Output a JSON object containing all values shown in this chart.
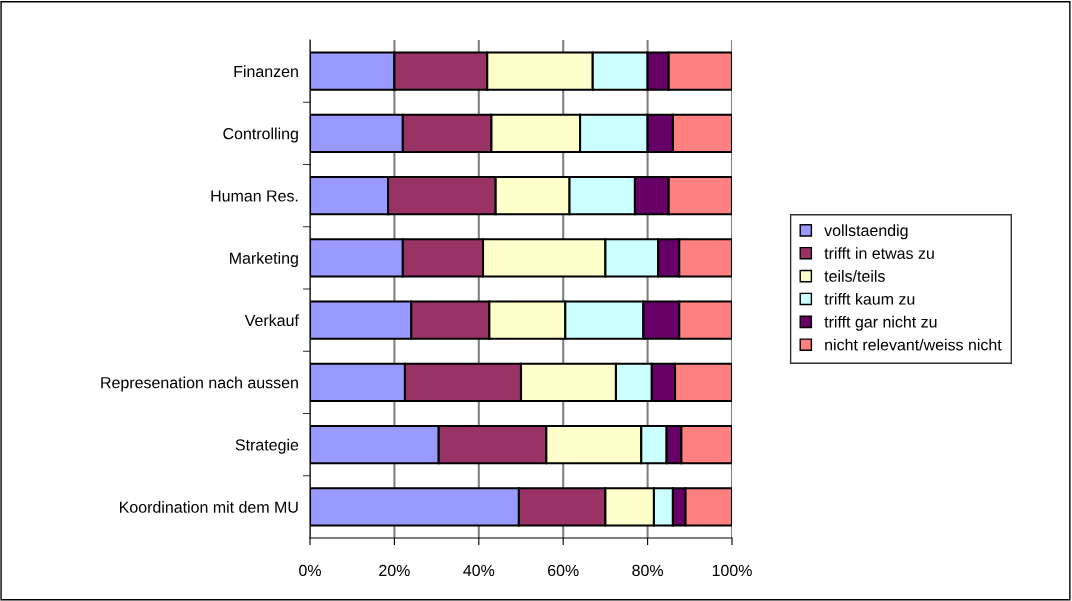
{
  "chart_data": {
    "type": "bar",
    "orientation": "horizontal",
    "stacked": true,
    "categories": [
      "Finanzen",
      "Controlling",
      "Human Res.",
      "Marketing",
      "Verkauf",
      "Represenation nach aussen",
      "Strategie",
      "Koordination mit dem MU"
    ],
    "series": [
      {
        "name": "vollstaendig",
        "color": "#9999ff",
        "values": [
          20,
          22,
          18.5,
          22,
          24,
          22.5,
          30.5,
          49.5
        ]
      },
      {
        "name": "trifft in etwas zu",
        "color": "#993366",
        "values": [
          22,
          21,
          25.5,
          19,
          18.5,
          27.5,
          25.5,
          20.5
        ]
      },
      {
        "name": "teils/teils",
        "color": "#ffffcc",
        "values": [
          25,
          21,
          17.5,
          29,
          18,
          22.5,
          22.5,
          11.5
        ]
      },
      {
        "name": "trifft kaum zu",
        "color": "#ccffff",
        "values": [
          13,
          16,
          15.5,
          12.5,
          18.5,
          8.5,
          6,
          4.5
        ]
      },
      {
        "name": "trifft gar nicht zu",
        "color": "#660066",
        "values": [
          5,
          6,
          8,
          5,
          8.5,
          5.5,
          3.5,
          3
        ]
      },
      {
        "name": "nicht relevant/weiss nicht",
        "color": "#ff8080",
        "values": [
          15,
          14,
          15,
          12.5,
          12.5,
          13.5,
          12,
          11
        ]
      }
    ],
    "xlim": [
      0,
      100
    ],
    "xticks": [
      {
        "value": 0,
        "label": "0%"
      },
      {
        "value": 20,
        "label": "20%"
      },
      {
        "value": 40,
        "label": "40%"
      },
      {
        "value": 60,
        "label": "60%"
      },
      {
        "value": 80,
        "label": "80%"
      },
      {
        "value": 100,
        "label": "100%"
      }
    ],
    "grid": "x",
    "legend": "right"
  }
}
